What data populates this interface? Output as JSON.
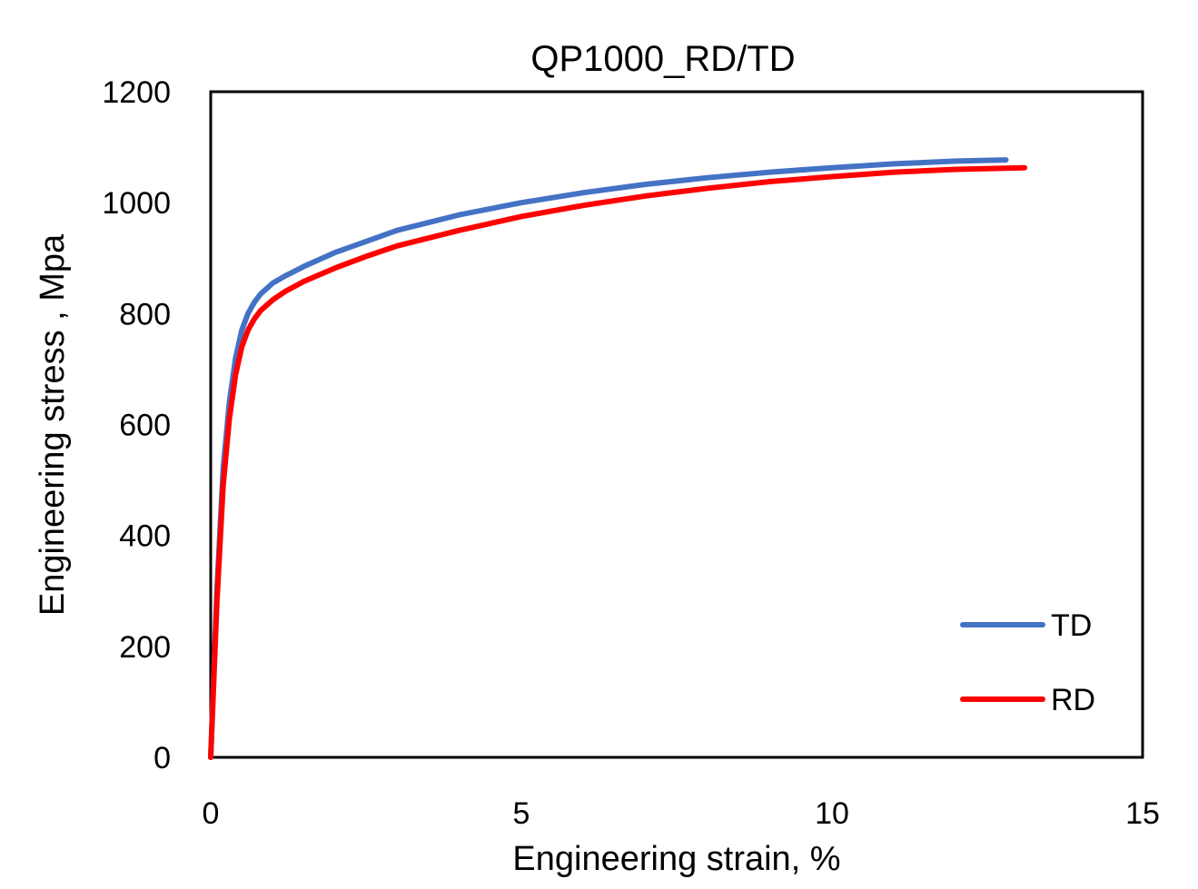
{
  "chart_data": {
    "type": "line",
    "title": "QP1000_RD/TD",
    "xlabel": "Engineering strain, %",
    "ylabel": "Engineering stress , Mpa",
    "xlim": [
      0,
      15
    ],
    "ylim": [
      0,
      1200
    ],
    "xticks": [
      0,
      5,
      10,
      15
    ],
    "yticks": [
      0,
      200,
      400,
      600,
      800,
      1000,
      1200
    ],
    "grid": false,
    "legend_position": "bottom-right",
    "series": [
      {
        "name": "TD",
        "color": "#4472C4",
        "x": [
          0,
          0.05,
          0.1,
          0.2,
          0.3,
          0.4,
          0.5,
          0.6,
          0.7,
          0.8,
          1.0,
          1.2,
          1.5,
          2.0,
          2.5,
          3.0,
          4.0,
          5.0,
          6.0,
          7.0,
          8.0,
          9.0,
          10.0,
          11.0,
          12.0,
          12.8
        ],
        "y": [
          0,
          150,
          300,
          520,
          640,
          720,
          770,
          800,
          820,
          835,
          855,
          868,
          885,
          910,
          930,
          950,
          978,
          1000,
          1018,
          1033,
          1045,
          1055,
          1063,
          1070,
          1075,
          1077
        ]
      },
      {
        "name": "RD",
        "color": "#FF0000",
        "x": [
          0,
          0.05,
          0.1,
          0.2,
          0.3,
          0.4,
          0.5,
          0.6,
          0.7,
          0.8,
          1.0,
          1.2,
          1.5,
          2.0,
          2.5,
          3.0,
          4.0,
          5.0,
          6.0,
          7.0,
          8.0,
          9.0,
          10.0,
          11.0,
          12.0,
          13.1
        ],
        "y": [
          0,
          140,
          280,
          490,
          610,
          690,
          740,
          770,
          790,
          805,
          825,
          840,
          858,
          882,
          903,
          922,
          950,
          975,
          995,
          1012,
          1026,
          1038,
          1047,
          1055,
          1060,
          1063
        ]
      }
    ]
  }
}
